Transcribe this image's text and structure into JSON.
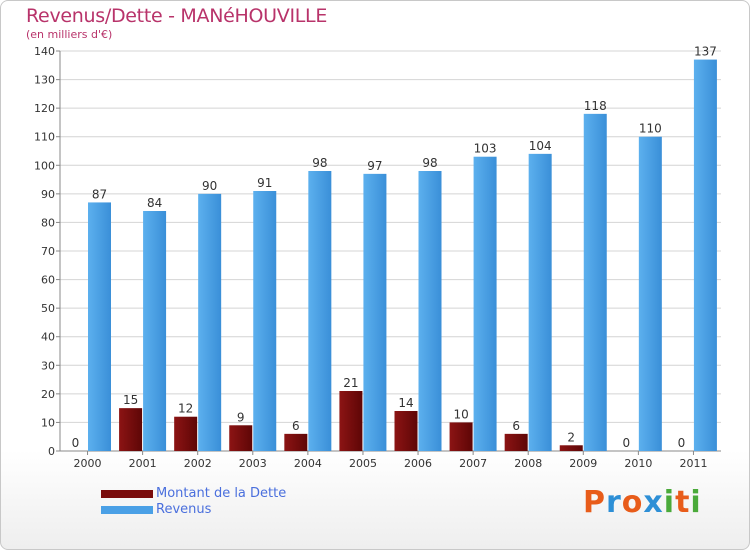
{
  "header": {
    "title": "Revenus/Dette - MANéHOUVILLE",
    "subtitle": "(en milliers d'€)"
  },
  "legend": [
    {
      "label": "Montant de la Dette",
      "color": "#7a0c0c"
    },
    {
      "label": "Revenus",
      "color": "#4aa0e6"
    }
  ],
  "brand": {
    "text": "Proxiti",
    "colors": [
      "#e85c1a",
      "#2d8fd6",
      "#e85c1a",
      "#2d8fd6",
      "#4aaa3a",
      "#e85c1a",
      "#4aaa3a"
    ]
  },
  "chart_data": {
    "type": "bar",
    "title": "Revenus/Dette - MANéHOUVILLE",
    "ylabel": "(en milliers d'€)",
    "categories": [
      "2000",
      "2001",
      "2002",
      "2003",
      "2004",
      "2005",
      "2006",
      "2007",
      "2008",
      "2009",
      "2010",
      "2011"
    ],
    "ylim": [
      0,
      140
    ],
    "yticks": [
      0,
      10,
      20,
      30,
      40,
      50,
      60,
      70,
      80,
      90,
      100,
      110,
      120,
      130,
      140
    ],
    "grid": true,
    "legend_position": "bottom-left",
    "series": [
      {
        "name": "Montant de la Dette",
        "color": "#7a0c0c",
        "values": [
          0,
          15,
          12,
          9,
          6,
          21,
          14,
          10,
          6,
          2,
          0,
          0
        ]
      },
      {
        "name": "Revenus",
        "color": "#4aa0e6",
        "values": [
          87,
          84,
          90,
          91,
          98,
          97,
          98,
          103,
          104,
          118,
          110,
          137
        ]
      }
    ]
  }
}
